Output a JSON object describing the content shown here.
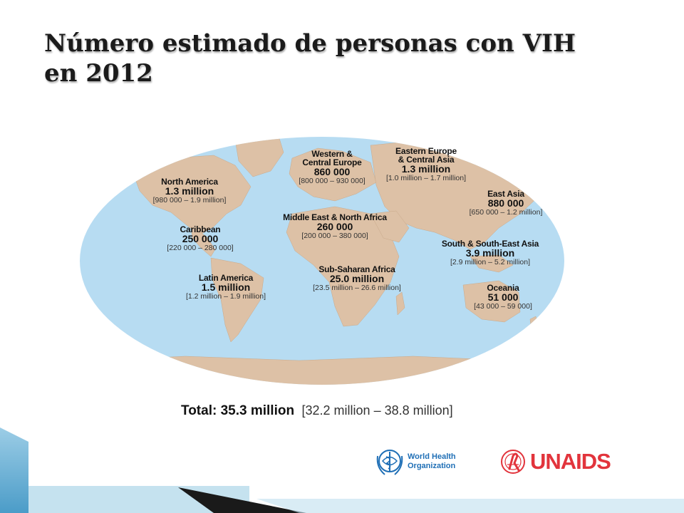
{
  "slide": {
    "title_line1": "Número estimado de personas con VIH",
    "title_line2": "en 2012"
  },
  "map": {
    "regions": [
      {
        "name": "North America",
        "value": "1.3 million",
        "range": "[980 000 – 1.9 million]"
      },
      {
        "name": "Caribbean",
        "value": "250 000",
        "range": "[220 000 – 280 000]"
      },
      {
        "name": "Latin America",
        "value": "1.5 million",
        "range": "[1.2 million – 1.9 million]"
      },
      {
        "name": "Western & Central Europe",
        "name_line1": "Western &",
        "name_line2": "Central Europe",
        "value": "860 000",
        "range": "[800 000 – 930 000]"
      },
      {
        "name": "Eastern Europe & Central Asia",
        "name_line1": "Eastern Europe",
        "name_line2": "& Central Asia",
        "value": "1.3 million",
        "range": "[1.0 million – 1.7 million]"
      },
      {
        "name": "Middle East & North Africa",
        "value": "260 000",
        "range": "[200 000 – 380 000]"
      },
      {
        "name": "Sub-Saharan Africa",
        "value": "25.0 million",
        "range": "[23.5 million – 26.6 million]"
      },
      {
        "name": "East Asia",
        "value": "880 000",
        "range": "[650 000 – 1.2 million]"
      },
      {
        "name": "South & South-East Asia",
        "value": "3.9 million",
        "range": "[2.9 million – 5.2 million]"
      },
      {
        "name": "Oceania",
        "value": "51 000",
        "range": "[43 000 – 59 000]"
      }
    ],
    "total_label": "Total: 35.3 million",
    "total_range": "[32.2 million – 38.8 million]",
    "ocean_color": "#b7dcf2",
    "land_color": "#ddc1a6"
  },
  "logos": {
    "who_line1": "World Health",
    "who_line2": "Organization",
    "unaids": "UNAIDS"
  },
  "colors": {
    "who_blue": "#1f6fb6",
    "unaids_red": "#e2343c"
  }
}
